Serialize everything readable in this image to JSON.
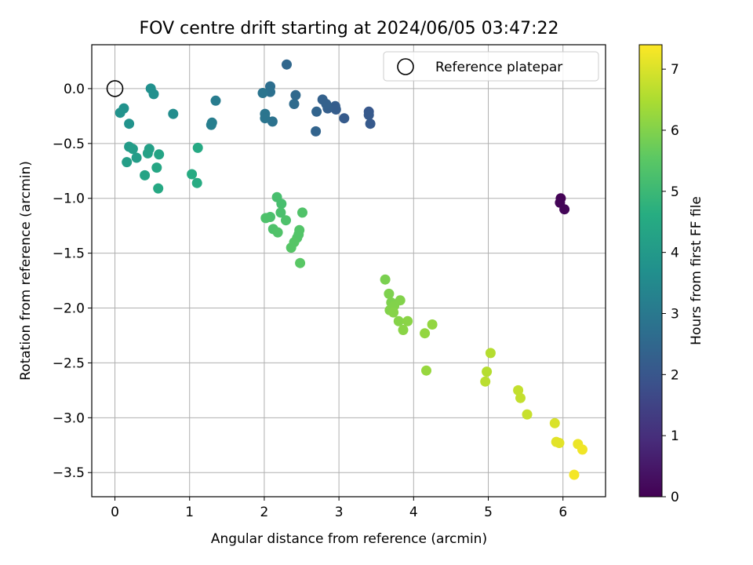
{
  "chart_data": {
    "type": "scatter",
    "title": "FOV centre drift starting at 2024/06/05 03:47:22",
    "xlabel": "Angular distance from reference (arcmin)",
    "ylabel": "Rotation from reference (arcmin)",
    "xlim": [
      -0.31,
      6.57
    ],
    "ylim": [
      -3.72,
      0.4
    ],
    "xticks": [
      0,
      1,
      2,
      3,
      4,
      5,
      6
    ],
    "xtick_labels": [
      "0",
      "1",
      "2",
      "3",
      "4",
      "5",
      "6"
    ],
    "yticks": [
      0.0,
      -0.5,
      -1.0,
      -1.5,
      -2.0,
      -2.5,
      -3.0,
      -3.5
    ],
    "ytick_labels": [
      "0.0",
      "−0.5",
      "−1.0",
      "−1.5",
      "−2.0",
      "−2.5",
      "−3.0",
      "−3.5"
    ],
    "grid": true,
    "legend": {
      "position": "top-right",
      "entries": [
        "Reference platepar"
      ]
    },
    "reference_point": {
      "x": 0,
      "y": 0
    },
    "colorbar": {
      "label": "Hours from first FF file",
      "colormap": "viridis",
      "range": [
        0,
        7.4
      ],
      "ticks": [
        0,
        1,
        2,
        3,
        4,
        5,
        6,
        7
      ],
      "tick_labels": [
        "0",
        "1",
        "2",
        "3",
        "4",
        "5",
        "6",
        "7"
      ]
    },
    "points": [
      {
        "x": 5.97,
        "y": -1.0,
        "c": 0.05
      },
      {
        "x": 5.96,
        "y": -1.04,
        "c": 0.08
      },
      {
        "x": 6.02,
        "y": -1.1,
        "c": 0.1
      },
      {
        "x": 3.42,
        "y": -0.32,
        "c": 2.1
      },
      {
        "x": 3.4,
        "y": -0.21,
        "c": 2.05
      },
      {
        "x": 3.4,
        "y": -0.24,
        "c": 2.1
      },
      {
        "x": 3.07,
        "y": -0.27,
        "c": 2.15
      },
      {
        "x": 2.95,
        "y": -0.16,
        "c": 2.2
      },
      {
        "x": 2.96,
        "y": -0.19,
        "c": 2.2
      },
      {
        "x": 2.85,
        "y": -0.18,
        "c": 2.25
      },
      {
        "x": 2.83,
        "y": -0.14,
        "c": 2.3
      },
      {
        "x": 2.78,
        "y": -0.1,
        "c": 2.3
      },
      {
        "x": 2.7,
        "y": -0.21,
        "c": 2.4
      },
      {
        "x": 2.69,
        "y": -0.39,
        "c": 2.4
      },
      {
        "x": 2.3,
        "y": 0.22,
        "c": 2.5
      },
      {
        "x": 2.42,
        "y": -0.06,
        "c": 2.55
      },
      {
        "x": 2.4,
        "y": -0.14,
        "c": 2.6
      },
      {
        "x": 2.08,
        "y": 0.02,
        "c": 2.7
      },
      {
        "x": 2.08,
        "y": -0.03,
        "c": 2.75
      },
      {
        "x": 2.11,
        "y": -0.3,
        "c": 2.8
      },
      {
        "x": 1.98,
        "y": -0.04,
        "c": 2.85
      },
      {
        "x": 2.01,
        "y": -0.23,
        "c": 2.9
      },
      {
        "x": 2.01,
        "y": -0.27,
        "c": 2.9
      },
      {
        "x": 1.35,
        "y": -0.11,
        "c": 3.1
      },
      {
        "x": 1.3,
        "y": -0.31,
        "c": 3.15
      },
      {
        "x": 1.29,
        "y": -0.33,
        "c": 3.2
      },
      {
        "x": 0.78,
        "y": -0.23,
        "c": 3.6
      },
      {
        "x": 0.48,
        "y": 0.0,
        "c": 3.7
      },
      {
        "x": 0.52,
        "y": -0.05,
        "c": 3.7
      },
      {
        "x": 0.12,
        "y": -0.18,
        "c": 3.75
      },
      {
        "x": 0.07,
        "y": -0.22,
        "c": 3.8
      },
      {
        "x": 0.19,
        "y": -0.32,
        "c": 3.8
      },
      {
        "x": 0.19,
        "y": -0.53,
        "c": 4.05
      },
      {
        "x": 0.24,
        "y": -0.55,
        "c": 4.1
      },
      {
        "x": 0.29,
        "y": -0.63,
        "c": 4.1
      },
      {
        "x": 0.16,
        "y": -0.67,
        "c": 4.15
      },
      {
        "x": 0.46,
        "y": -0.55,
        "c": 4.2
      },
      {
        "x": 0.44,
        "y": -0.59,
        "c": 4.25
      },
      {
        "x": 0.4,
        "y": -0.79,
        "c": 4.3
      },
      {
        "x": 0.59,
        "y": -0.6,
        "c": 4.35
      },
      {
        "x": 0.56,
        "y": -0.72,
        "c": 4.4
      },
      {
        "x": 0.58,
        "y": -0.91,
        "c": 4.45
      },
      {
        "x": 1.11,
        "y": -0.54,
        "c": 4.5
      },
      {
        "x": 1.03,
        "y": -0.78,
        "c": 4.55
      },
      {
        "x": 1.1,
        "y": -0.86,
        "c": 4.55
      },
      {
        "x": 2.17,
        "y": -0.99,
        "c": 5.2
      },
      {
        "x": 2.23,
        "y": -1.05,
        "c": 5.2
      },
      {
        "x": 2.22,
        "y": -1.13,
        "c": 5.25
      },
      {
        "x": 2.08,
        "y": -1.17,
        "c": 5.25
      },
      {
        "x": 2.02,
        "y": -1.18,
        "c": 5.3
      },
      {
        "x": 2.29,
        "y": -1.2,
        "c": 5.3
      },
      {
        "x": 2.12,
        "y": -1.28,
        "c": 5.3
      },
      {
        "x": 2.18,
        "y": -1.31,
        "c": 5.35
      },
      {
        "x": 2.51,
        "y": -1.13,
        "c": 5.35
      },
      {
        "x": 2.47,
        "y": -1.29,
        "c": 5.4
      },
      {
        "x": 2.46,
        "y": -1.33,
        "c": 5.4
      },
      {
        "x": 2.44,
        "y": -1.36,
        "c": 5.4
      },
      {
        "x": 2.4,
        "y": -1.4,
        "c": 5.45
      },
      {
        "x": 2.36,
        "y": -1.45,
        "c": 5.45
      },
      {
        "x": 2.48,
        "y": -1.59,
        "c": 5.5
      },
      {
        "x": 3.62,
        "y": -1.74,
        "c": 5.9
      },
      {
        "x": 3.67,
        "y": -1.87,
        "c": 5.95
      },
      {
        "x": 3.7,
        "y": -1.95,
        "c": 5.95
      },
      {
        "x": 3.74,
        "y": -1.98,
        "c": 6.0
      },
      {
        "x": 3.82,
        "y": -1.93,
        "c": 6.0
      },
      {
        "x": 3.68,
        "y": -2.02,
        "c": 6.0
      },
      {
        "x": 3.73,
        "y": -2.04,
        "c": 6.05
      },
      {
        "x": 3.8,
        "y": -2.12,
        "c": 6.05
      },
      {
        "x": 3.92,
        "y": -2.12,
        "c": 6.1
      },
      {
        "x": 3.86,
        "y": -2.2,
        "c": 6.1
      },
      {
        "x": 4.25,
        "y": -2.15,
        "c": 6.2
      },
      {
        "x": 4.15,
        "y": -2.23,
        "c": 6.2
      },
      {
        "x": 4.17,
        "y": -2.57,
        "c": 6.25
      },
      {
        "x": 5.03,
        "y": -2.41,
        "c": 6.6
      },
      {
        "x": 4.98,
        "y": -2.58,
        "c": 6.6
      },
      {
        "x": 4.96,
        "y": -2.67,
        "c": 6.65
      },
      {
        "x": 5.4,
        "y": -2.75,
        "c": 6.75
      },
      {
        "x": 5.43,
        "y": -2.82,
        "c": 6.75
      },
      {
        "x": 5.52,
        "y": -2.97,
        "c": 6.8
      },
      {
        "x": 5.89,
        "y": -3.05,
        "c": 7.0
      },
      {
        "x": 5.91,
        "y": -3.22,
        "c": 7.1
      },
      {
        "x": 5.95,
        "y": -3.23,
        "c": 7.1
      },
      {
        "x": 6.2,
        "y": -3.24,
        "c": 7.2
      },
      {
        "x": 6.26,
        "y": -3.29,
        "c": 7.25
      },
      {
        "x": 6.15,
        "y": -3.52,
        "c": 7.3
      }
    ]
  }
}
